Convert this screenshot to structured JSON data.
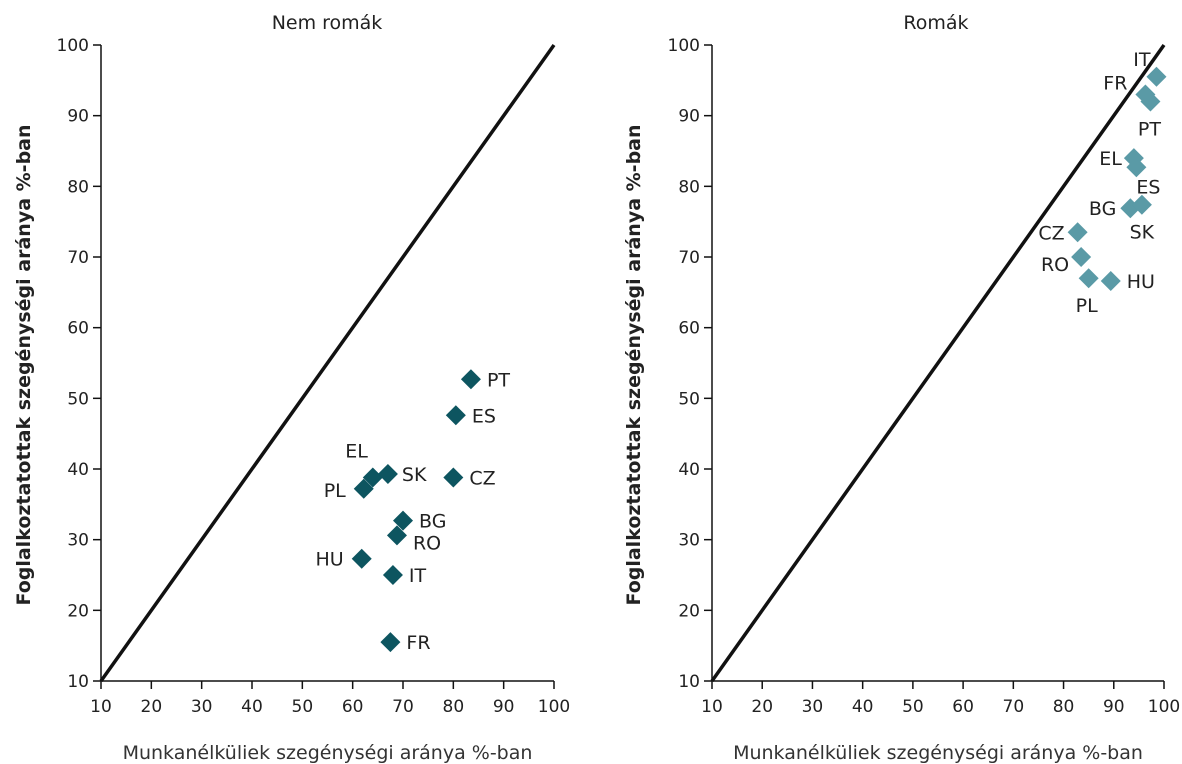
{
  "chart_data": [
    {
      "type": "scatter",
      "title": "Nem romák",
      "xlabel": "Munkanélküliek szegénységi aránya %-ban",
      "ylabel": "Foglalkoztatottak szegénységi aránya %-ban",
      "xlim": [
        10,
        100
      ],
      "ylim": [
        10,
        100
      ],
      "xticks": [
        10,
        20,
        30,
        40,
        50,
        60,
        70,
        80,
        90,
        100
      ],
      "yticks": [
        10,
        20,
        30,
        40,
        50,
        60,
        70,
        80,
        90,
        100
      ],
      "reference_line": "y = x",
      "marker_color": "#0d5560",
      "points": [
        {
          "label": "PT",
          "x": 83.5,
          "y": 52.7
        },
        {
          "label": "ES",
          "x": 80.5,
          "y": 47.6
        },
        {
          "label": "EL",
          "x": 64.0,
          "y": 38.8
        },
        {
          "label": "SK",
          "x": 67.0,
          "y": 39.3
        },
        {
          "label": "CZ",
          "x": 80.0,
          "y": 38.8
        },
        {
          "label": "PL",
          "x": 62.2,
          "y": 37.2
        },
        {
          "label": "BG",
          "x": 70.0,
          "y": 32.7
        },
        {
          "label": "RO",
          "x": 68.8,
          "y": 30.6
        },
        {
          "label": "HU",
          "x": 61.8,
          "y": 27.3
        },
        {
          "label": "IT",
          "x": 68.0,
          "y": 25.0
        },
        {
          "label": "FR",
          "x": 67.5,
          "y": 15.5
        }
      ]
    },
    {
      "type": "scatter",
      "title": "Romák",
      "xlabel": "Munkanélküliek szegénységi aránya %-ban",
      "ylabel": "Foglalkoztatottak szegénységi aránya %-ban",
      "xlim": [
        10,
        100
      ],
      "ylim": [
        10,
        100
      ],
      "xticks": [
        10,
        20,
        30,
        40,
        50,
        60,
        70,
        80,
        90,
        100
      ],
      "yticks": [
        10,
        20,
        30,
        40,
        50,
        60,
        70,
        80,
        90,
        100
      ],
      "reference_line": "y = x",
      "marker_color": "#5a9aa6",
      "points": [
        {
          "label": "IT",
          "x": 98.5,
          "y": 95.5
        },
        {
          "label": "FR",
          "x": 96.3,
          "y": 93.0
        },
        {
          "label": "PT",
          "x": 97.3,
          "y": 92.0
        },
        {
          "label": "EL",
          "x": 94.0,
          "y": 84.0
        },
        {
          "label": "ES",
          "x": 94.5,
          "y": 82.7
        },
        {
          "label": "BG",
          "x": 93.3,
          "y": 76.9
        },
        {
          "label": "SK",
          "x": 95.6,
          "y": 77.4
        },
        {
          "label": "CZ",
          "x": 82.8,
          "y": 73.5
        },
        {
          "label": "RO",
          "x": 83.5,
          "y": 70.0
        },
        {
          "label": "PL",
          "x": 85.0,
          "y": 67.0
        },
        {
          "label": "HU",
          "x": 89.4,
          "y": 66.6
        }
      ]
    }
  ]
}
